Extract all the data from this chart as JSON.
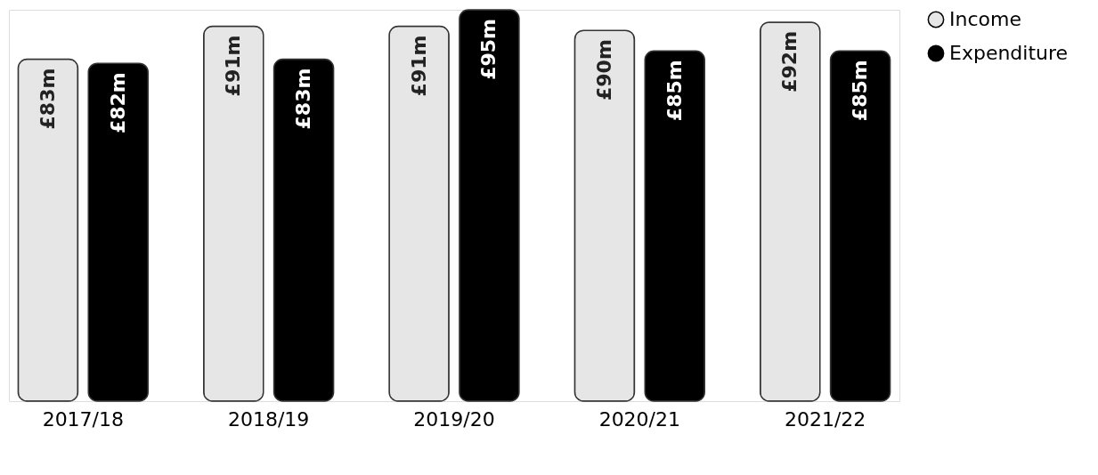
{
  "chart_data": {
    "type": "bar",
    "categories": [
      "2017/18",
      "2018/19",
      "2019/20",
      "2020/21",
      "2021/22"
    ],
    "series": [
      {
        "name": "Income",
        "color": "#e6e6e6",
        "values": [
          83,
          91,
          91,
          90,
          92
        ],
        "value_labels": [
          "£83m",
          "£91m",
          "£91m",
          "£90m",
          "£92m"
        ]
      },
      {
        "name": "Expenditure",
        "color": "#000000",
        "values": [
          82,
          83,
          95,
          85,
          85
        ],
        "value_labels": [
          "£82m",
          "£83m",
          "£95m",
          "£85m",
          "£85m"
        ]
      }
    ],
    "legend": "right"
  }
}
